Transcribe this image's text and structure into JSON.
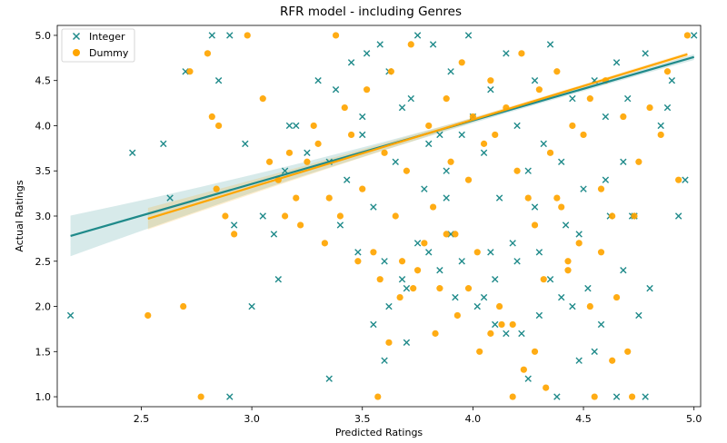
{
  "chart_data": {
    "type": "scatter",
    "title": "RFR model - including Genres",
    "xlabel": "Predicted Ratings",
    "ylabel": "Actual Ratings",
    "xlim": [
      2.12,
      5.03
    ],
    "ylim": [
      0.89,
      5.11
    ],
    "xticks": [
      2.5,
      3.0,
      3.5,
      4.0,
      4.5,
      5.0
    ],
    "xtick_labels": [
      "2.5",
      "3.0",
      "3.5",
      "4.0",
      "4.5",
      "5.0"
    ],
    "yticks": [
      1.0,
      1.5,
      2.0,
      2.5,
      3.0,
      3.5,
      4.0,
      4.5,
      5.0
    ],
    "ytick_labels": [
      "1.0",
      "1.5",
      "2.0",
      "2.5",
      "3.0",
      "3.5",
      "4.0",
      "4.5",
      "5.0"
    ],
    "grid": false,
    "legend_position": "top-left",
    "series": [
      {
        "name": "Integer",
        "marker": "x",
        "color": "#1f8a8a",
        "x": [
          2.18,
          2.46,
          2.6,
          2.63,
          2.7,
          2.82,
          2.85,
          2.9,
          2.9,
          2.92,
          2.97,
          3.0,
          3.05,
          3.1,
          3.12,
          3.15,
          3.17,
          3.2,
          3.25,
          3.3,
          3.35,
          3.38,
          3.4,
          3.43,
          3.45,
          3.48,
          3.5,
          3.52,
          3.55,
          3.58,
          3.6,
          3.62,
          3.65,
          3.68,
          3.7,
          3.72,
          3.75,
          3.78,
          3.8,
          3.82,
          3.85,
          3.88,
          3.9,
          3.92,
          3.95,
          3.98,
          4.0,
          4.02,
          4.05,
          4.08,
          4.1,
          4.12,
          4.15,
          4.18,
          4.2,
          4.22,
          4.25,
          4.28,
          4.3,
          4.32,
          4.35,
          4.38,
          4.4,
          4.42,
          4.45,
          4.48,
          4.5,
          4.52,
          4.55,
          4.58,
          4.6,
          4.62,
          4.65,
          4.68,
          4.7,
          4.73,
          4.75,
          4.78,
          4.8,
          4.85,
          4.9,
          4.93,
          4.96,
          5.0,
          3.35,
          3.55,
          3.6,
          3.7,
          3.75,
          3.85,
          3.95,
          4.05,
          4.15,
          4.25,
          4.35,
          4.45,
          4.55,
          4.65,
          4.72,
          4.78,
          3.62,
          3.8,
          3.9,
          4.1,
          4.2,
          4.3,
          4.4,
          4.6,
          3.5,
          3.68,
          3.88,
          4.08,
          4.28,
          4.48,
          4.68,
          4.88
        ],
        "y": [
          1.9,
          3.7,
          3.8,
          3.2,
          4.6,
          5.0,
          4.5,
          5.0,
          1.0,
          2.9,
          3.8,
          2.0,
          3.0,
          2.8,
          2.3,
          3.5,
          4.0,
          4.0,
          3.7,
          4.5,
          1.2,
          4.4,
          2.9,
          3.4,
          4.7,
          2.6,
          3.9,
          4.8,
          3.1,
          4.9,
          2.5,
          4.6,
          3.6,
          4.2,
          2.2,
          4.3,
          5.0,
          3.3,
          3.8,
          4.9,
          2.4,
          3.5,
          4.6,
          2.1,
          3.9,
          5.0,
          4.1,
          2.0,
          3.7,
          4.4,
          1.8,
          3.2,
          4.8,
          2.7,
          4.0,
          1.7,
          3.5,
          4.5,
          2.6,
          3.8,
          4.9,
          1.0,
          3.6,
          2.9,
          4.3,
          1.4,
          3.3,
          2.2,
          4.5,
          1.8,
          4.1,
          3.0,
          4.7,
          2.4,
          4.3,
          3.0,
          1.9,
          4.8,
          2.2,
          4.0,
          4.5,
          3.0,
          3.4,
          5.0,
          3.6,
          1.8,
          1.4,
          1.6,
          2.7,
          3.9,
          2.5,
          2.1,
          1.7,
          1.2,
          2.3,
          2.0,
          1.5,
          1.0,
          3.0,
          1.0,
          2.0,
          2.6,
          2.8,
          2.3,
          2.5,
          1.9,
          2.1,
          3.4,
          4.1,
          2.3,
          3.2,
          2.6,
          3.1,
          2.8,
          3.6,
          4.2
        ]
      },
      {
        "name": "Dummy",
        "marker": "o",
        "color": "#ffa500",
        "x": [
          2.53,
          2.69,
          2.72,
          2.77,
          2.8,
          2.82,
          2.84,
          2.85,
          2.88,
          2.92,
          2.98,
          3.05,
          3.08,
          3.12,
          3.15,
          3.17,
          3.2,
          3.22,
          3.25,
          3.28,
          3.3,
          3.33,
          3.35,
          3.38,
          3.4,
          3.42,
          3.45,
          3.48,
          3.5,
          3.52,
          3.55,
          3.58,
          3.6,
          3.63,
          3.65,
          3.67,
          3.7,
          3.72,
          3.75,
          3.78,
          3.8,
          3.82,
          3.85,
          3.88,
          3.9,
          3.92,
          3.95,
          3.98,
          4.0,
          4.02,
          4.05,
          4.08,
          4.1,
          4.12,
          4.15,
          4.18,
          4.2,
          4.22,
          4.25,
          4.28,
          4.3,
          4.32,
          4.35,
          4.38,
          4.4,
          4.43,
          4.45,
          4.48,
          4.5,
          4.53,
          4.55,
          4.58,
          4.6,
          4.63,
          4.65,
          4.68,
          4.7,
          4.72,
          4.75,
          4.8,
          4.85,
          4.88,
          4.93,
          4.97,
          3.57,
          3.62,
          3.68,
          3.73,
          3.83,
          3.93,
          4.03,
          4.13,
          4.23,
          4.33,
          4.43,
          4.53,
          4.63,
          4.73,
          4.08,
          4.18,
          4.28,
          3.88,
          3.98,
          4.38,
          4.58
        ],
        "y": [
          1.9,
          2.0,
          4.6,
          1.0,
          4.8,
          4.1,
          3.3,
          4.0,
          3.0,
          2.8,
          5.0,
          4.3,
          3.6,
          3.4,
          3.0,
          3.7,
          3.2,
          2.9,
          3.6,
          4.0,
          3.8,
          2.7,
          3.2,
          5.0,
          3.0,
          4.2,
          3.9,
          2.5,
          3.3,
          4.4,
          2.6,
          2.3,
          3.7,
          4.6,
          3.0,
          2.1,
          3.5,
          4.9,
          2.4,
          2.7,
          4.0,
          3.1,
          2.2,
          4.3,
          3.6,
          2.8,
          4.7,
          3.4,
          4.1,
          2.6,
          3.8,
          4.5,
          3.9,
          2.0,
          4.2,
          1.8,
          3.5,
          4.8,
          3.2,
          2.9,
          4.4,
          2.3,
          3.7,
          4.6,
          3.1,
          2.5,
          4.0,
          2.7,
          3.9,
          4.3,
          1.0,
          3.3,
          4.5,
          3.0,
          2.1,
          4.1,
          1.5,
          1.0,
          3.6,
          4.2,
          3.9,
          4.6,
          3.4,
          5.0,
          1.0,
          1.6,
          2.5,
          2.2,
          1.7,
          1.9,
          1.5,
          1.8,
          1.3,
          1.1,
          2.4,
          2.0,
          1.4,
          3.0,
          1.7,
          1.0,
          1.5,
          2.8,
          2.2,
          3.2,
          2.6
        ]
      }
    ],
    "regression_lines": [
      {
        "series": "Integer",
        "x": [
          2.18,
          5.0
        ],
        "y": [
          2.78,
          4.76
        ],
        "color": "#1f8a8a"
      },
      {
        "series": "Dummy",
        "x": [
          2.53,
          4.97
        ],
        "y": [
          2.97,
          4.79
        ],
        "color": "#ffa500"
      }
    ]
  }
}
